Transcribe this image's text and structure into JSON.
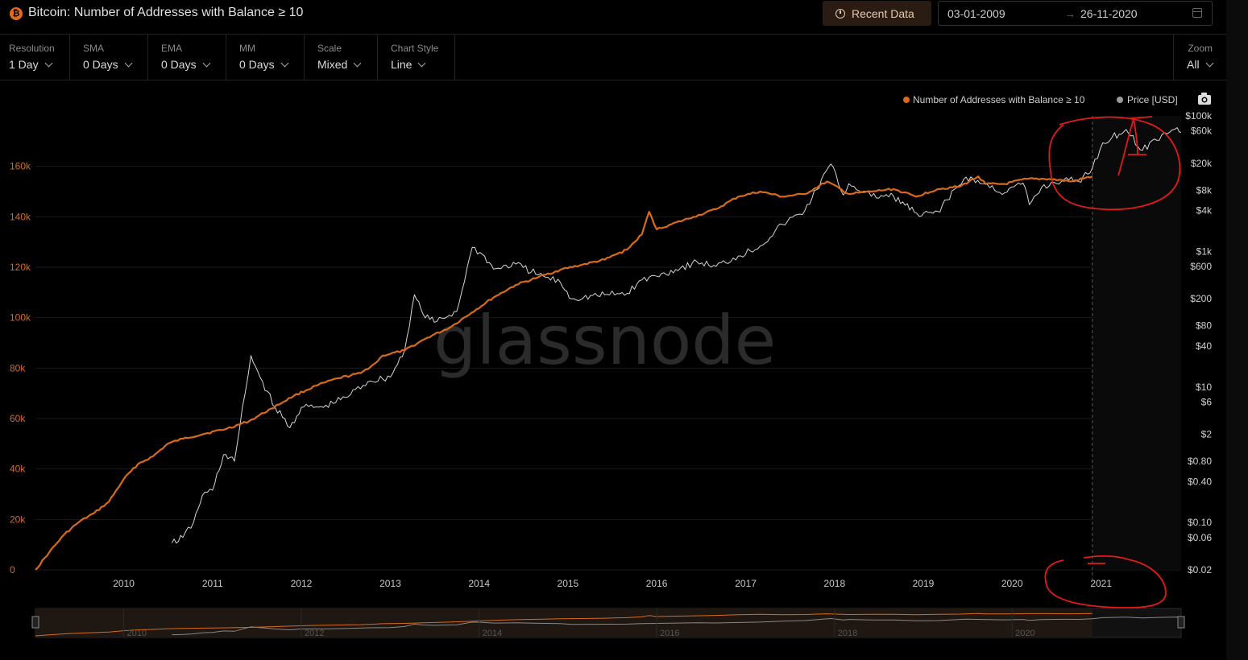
{
  "header": {
    "icon": "bitcoin-icon",
    "title": "Bitcoin: Number of Addresses with Balance ≥ 10",
    "recent_label": "Recent Data",
    "date_start": "03-01-2009",
    "date_arrow": "→",
    "date_end": "26-11-2020"
  },
  "controls": [
    {
      "label": "Resolution",
      "value": "1 Day"
    },
    {
      "label": "SMA",
      "value": "0 Days"
    },
    {
      "label": "EMA",
      "value": "0 Days"
    },
    {
      "label": "MM",
      "value": "0 Days"
    },
    {
      "label": "Scale",
      "value": "Mixed"
    },
    {
      "label": "Chart Style",
      "value": "Line"
    }
  ],
  "zoom": {
    "label": "Zoom",
    "value": "All"
  },
  "colors": {
    "addresses": "#d86a1c",
    "price": "#d6d6d6",
    "background": "#000000",
    "annotation": "#e11b1b"
  },
  "chart_data": {
    "type": "line",
    "watermark": "glassnode",
    "legend_position": "top-right",
    "x_range": [
      "2009-01-03",
      "2021-11-26"
    ],
    "x_ticks": [
      "2010",
      "2011",
      "2012",
      "2013",
      "2014",
      "2015",
      "2016",
      "2017",
      "2018",
      "2019",
      "2020",
      "2021"
    ],
    "today_marker": "2020-11-26",
    "y_left": {
      "ticks": [
        "0",
        "20k",
        "40k",
        "60k",
        "80k",
        "100k",
        "120k",
        "140k",
        "160k"
      ],
      "range": [
        0,
        180000
      ],
      "scale": "linear"
    },
    "y_right": {
      "ticks": [
        "$100k",
        "$60k",
        "$20k",
        "$8k",
        "$4k",
        "$1k",
        "$600",
        "$200",
        "$80",
        "$40",
        "$10",
        "$6",
        "$2",
        "$0.80",
        "$0.40",
        "$0.10",
        "$0.06",
        "$0.02"
      ],
      "range": [
        0.02,
        100000
      ],
      "scale": "log"
    },
    "series": [
      {
        "name": "Number of Addresses with Balance ≥ 10",
        "axis": "left",
        "points": [
          [
            "2009-01-03",
            0
          ],
          [
            "2009-03-01",
            7000
          ],
          [
            "2009-05-01",
            14000
          ],
          [
            "2009-07-01",
            19000
          ],
          [
            "2009-09-01",
            22500
          ],
          [
            "2009-11-01",
            27000
          ],
          [
            "2010-01-01",
            36000
          ],
          [
            "2010-03-01",
            42000
          ],
          [
            "2010-05-01",
            45000
          ],
          [
            "2010-07-01",
            50000
          ],
          [
            "2010-09-01",
            52000
          ],
          [
            "2010-12-01",
            54000
          ],
          [
            "2011-03-01",
            56000
          ],
          [
            "2011-06-01",
            59000
          ],
          [
            "2011-09-01",
            64000
          ],
          [
            "2011-12-01",
            69000
          ],
          [
            "2012-03-01",
            73000
          ],
          [
            "2012-06-01",
            76000
          ],
          [
            "2012-09-01",
            78000
          ],
          [
            "2012-11-01",
            82000
          ],
          [
            "2012-12-01",
            85000
          ],
          [
            "2013-03-01",
            87000
          ],
          [
            "2013-06-01",
            92000
          ],
          [
            "2013-09-01",
            96000
          ],
          [
            "2013-12-01",
            102000
          ],
          [
            "2014-03-01",
            108000
          ],
          [
            "2014-06-01",
            113000
          ],
          [
            "2014-09-01",
            116000
          ],
          [
            "2014-12-01",
            119000
          ],
          [
            "2015-03-01",
            121000
          ],
          [
            "2015-06-01",
            123000
          ],
          [
            "2015-09-01",
            127000
          ],
          [
            "2015-11-01",
            133000
          ],
          [
            "2015-12-01",
            142000
          ],
          [
            "2016-01-01",
            135000
          ],
          [
            "2016-03-01",
            137000
          ],
          [
            "2016-06-01",
            140000
          ],
          [
            "2016-09-01",
            143000
          ],
          [
            "2016-12-01",
            148000
          ],
          [
            "2017-03-01",
            150000
          ],
          [
            "2017-06-01",
            148000
          ],
          [
            "2017-09-01",
            149000
          ],
          [
            "2017-12-01",
            154000
          ],
          [
            "2018-03-01",
            149000
          ],
          [
            "2018-06-01",
            150000
          ],
          [
            "2018-09-01",
            151000
          ],
          [
            "2018-12-01",
            148000
          ],
          [
            "2019-03-01",
            151000
          ],
          [
            "2019-06-01",
            152000
          ],
          [
            "2019-08-15",
            156000
          ],
          [
            "2019-09-15",
            153000
          ],
          [
            "2019-12-01",
            153000
          ],
          [
            "2020-03-01",
            155000
          ],
          [
            "2020-06-01",
            155000
          ],
          [
            "2020-09-01",
            154000
          ],
          [
            "2020-11-26",
            156000
          ]
        ]
      },
      {
        "name": "Price [USD]",
        "axis": "right",
        "points": [
          [
            "2010-07-18",
            0.05
          ],
          [
            "2010-09-01",
            0.06
          ],
          [
            "2010-10-15",
            0.1
          ],
          [
            "2010-11-20",
            0.25
          ],
          [
            "2011-01-01",
            0.3
          ],
          [
            "2011-02-15",
            1
          ],
          [
            "2011-04-01",
            0.8
          ],
          [
            "2011-05-15",
            8
          ],
          [
            "2011-06-08",
            29
          ],
          [
            "2011-07-15",
            14
          ],
          [
            "2011-09-15",
            5
          ],
          [
            "2011-11-15",
            2.5
          ],
          [
            "2012-01-01",
            5
          ],
          [
            "2012-04-01",
            5
          ],
          [
            "2012-07-01",
            7
          ],
          [
            "2012-10-01",
            12
          ],
          [
            "2013-01-01",
            14
          ],
          [
            "2013-03-01",
            35
          ],
          [
            "2013-04-10",
            230
          ],
          [
            "2013-05-15",
            120
          ],
          [
            "2013-07-01",
            90
          ],
          [
            "2013-10-01",
            130
          ],
          [
            "2013-12-04",
            1150
          ],
          [
            "2014-01-15",
            900
          ],
          [
            "2014-03-01",
            550
          ],
          [
            "2014-06-01",
            650
          ],
          [
            "2014-09-01",
            450
          ],
          [
            "2014-12-01",
            350
          ],
          [
            "2015-01-15",
            200
          ],
          [
            "2015-06-01",
            230
          ],
          [
            "2015-09-01",
            240
          ],
          [
            "2015-11-01",
            380
          ],
          [
            "2016-01-01",
            430
          ],
          [
            "2016-06-15",
            700
          ],
          [
            "2016-09-01",
            600
          ],
          [
            "2016-12-01",
            850
          ],
          [
            "2017-03-01",
            1200
          ],
          [
            "2017-06-01",
            2500
          ],
          [
            "2017-09-01",
            4000
          ],
          [
            "2017-12-17",
            19500
          ],
          [
            "2018-02-06",
            6800
          ],
          [
            "2018-03-01",
            10000
          ],
          [
            "2018-06-01",
            6500
          ],
          [
            "2018-09-01",
            6500
          ],
          [
            "2018-11-25",
            3800
          ],
          [
            "2018-12-15",
            3300
          ],
          [
            "2019-03-01",
            3900
          ],
          [
            "2019-06-26",
            12500
          ],
          [
            "2019-09-01",
            10000
          ],
          [
            "2019-12-01",
            7300
          ],
          [
            "2020-02-15",
            10200
          ],
          [
            "2020-03-12",
            4900
          ],
          [
            "2020-05-01",
            8800
          ],
          [
            "2020-08-01",
            11500
          ],
          [
            "2020-10-01",
            10700
          ],
          [
            "2020-11-26",
            17000
          ],
          [
            "2021-01-08",
            40000
          ],
          [
            "2021-04-14",
            63000
          ],
          [
            "2021-06-20",
            31000
          ],
          [
            "2021-09-07",
            52000
          ],
          [
            "2021-11-10",
            67000
          ],
          [
            "2021-11-26",
            57000
          ]
        ]
      }
    ]
  }
}
